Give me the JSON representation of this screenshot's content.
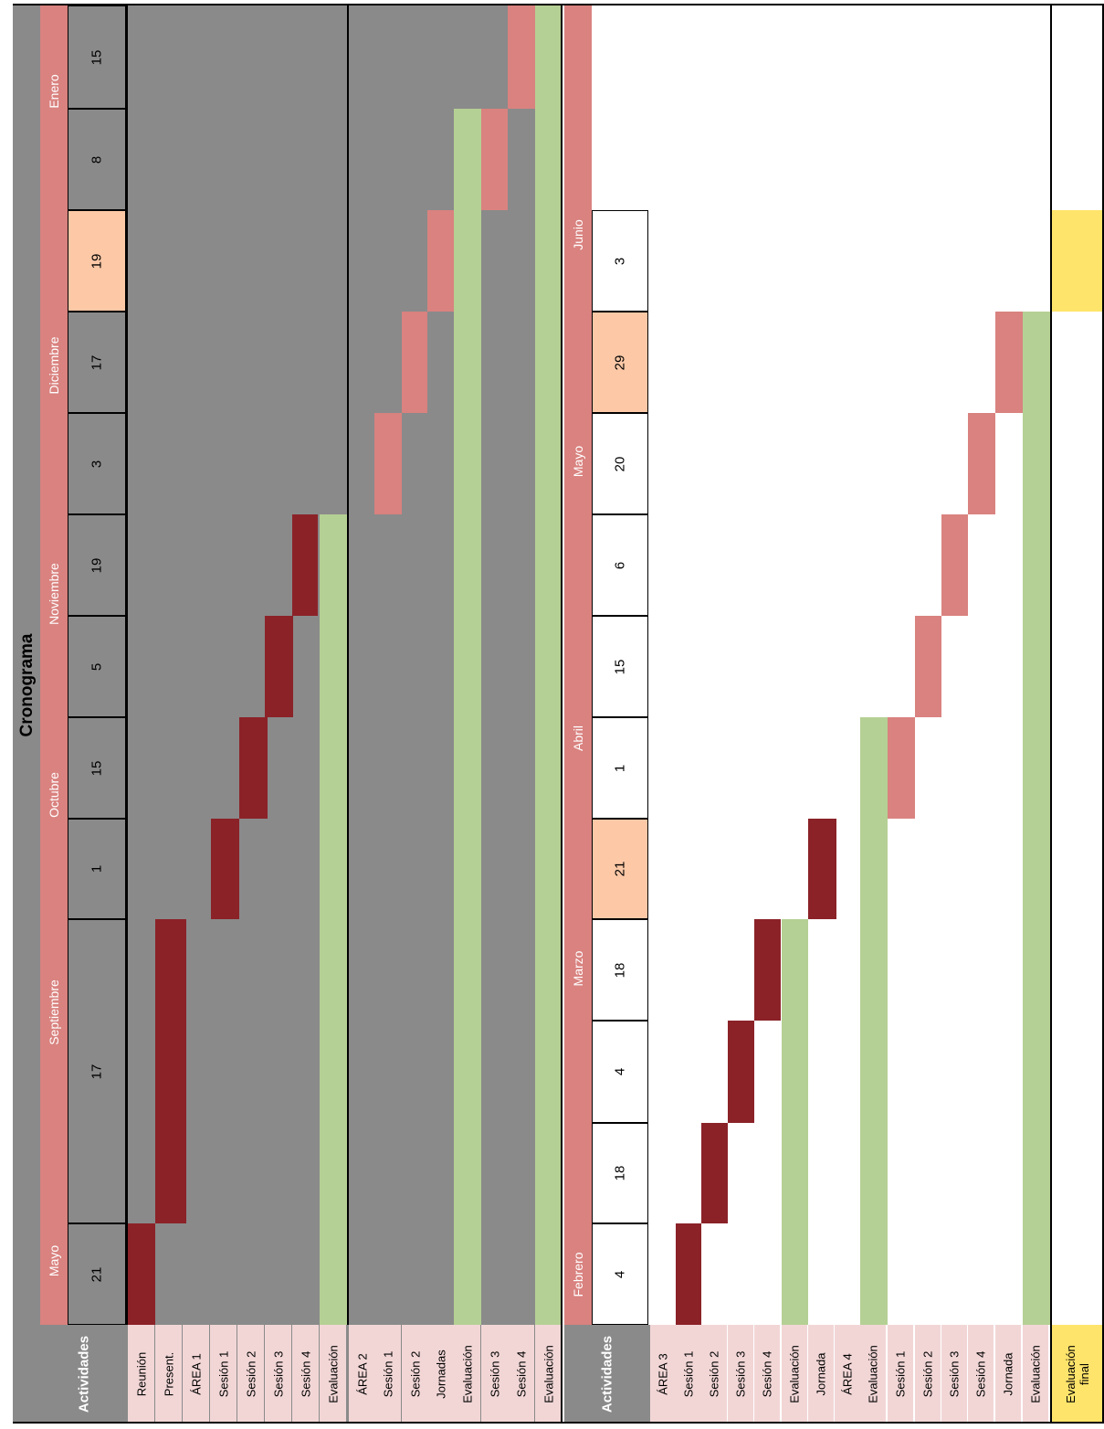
{
  "title": "Cronograma",
  "header_label": "Actividades",
  "colors": {
    "gray": "#8a8a8a",
    "month_band": "#d9827f",
    "activity_label": "#f2d6d6",
    "task_bar": "#8b2228",
    "task_bar_light": "#d9827f",
    "evaluation": "#b5d094",
    "highlight_date": "#fcc8a6",
    "final": "#ffe46b"
  },
  "schedule1": {
    "months": [
      "Mayo",
      "Septiembre",
      "Octubre",
      "Noviembre",
      "Diciembre",
      "Enero"
    ],
    "days": [
      "21",
      "17",
      "1",
      "15",
      "5",
      "19",
      "3",
      "17",
      "19",
      "8",
      "15"
    ],
    "highlighted_days": [
      "19"
    ],
    "activities": [
      "Reunión",
      "Present.",
      "ÁREA 1",
      "Sesión 1",
      "Sesión 2",
      "Sesión 3",
      "Sesión 4",
      "Evaluación",
      "ÁREA 2",
      "Sesión 1",
      "Sesión 2",
      "Jornadas",
      "Evaluación",
      "Sesión 3",
      "Sesión 4",
      "Evaluación"
    ]
  },
  "schedule2": {
    "months": [
      "Febrero",
      "Marzo",
      "Abril",
      "Mayo",
      "Junio"
    ],
    "days": [
      "4",
      "18",
      "4",
      "18",
      "21",
      "1",
      "15",
      "6",
      "20",
      "29",
      "3"
    ],
    "highlighted_days": [
      "21",
      "29"
    ],
    "activities": [
      "ÁREA 3",
      "Sesión 1",
      "Sesión 2",
      "Sesión 3",
      "Sesión 4",
      "Evaluación",
      "Jornada",
      "ÁREA 4",
      "Evaluación",
      "Sesión 1",
      "Sesión 2",
      "Sesión 3",
      "Sesión 4",
      "Jornada",
      "Evaluación",
      "Evaluación final"
    ]
  }
}
